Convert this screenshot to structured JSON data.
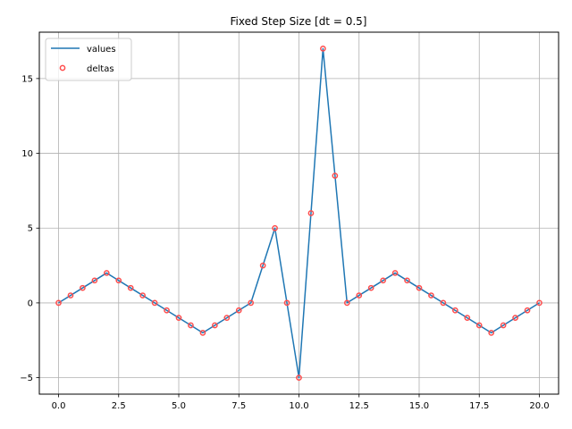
{
  "chart_data": {
    "type": "line",
    "title": "Fixed Step Size [dt = 0.5]",
    "xlabel": "",
    "ylabel": "",
    "xlim": [
      -0.8,
      20.8
    ],
    "ylim": [
      -6.1,
      18.1
    ],
    "grid": true,
    "legend_position": "top-left",
    "x_ticks": [
      0.0,
      2.5,
      5.0,
      7.5,
      10.0,
      12.5,
      15.0,
      17.5,
      20.0
    ],
    "x_tick_labels": [
      "0.0",
      "2.5",
      "5.0",
      "7.5",
      "10.0",
      "12.5",
      "15.0",
      "17.5",
      "20.0"
    ],
    "y_ticks": [
      -5,
      0,
      5,
      10,
      15
    ],
    "y_tick_labels": [
      "−5",
      "0",
      "5",
      "10",
      "15"
    ],
    "x": [
      0.0,
      0.5,
      1.0,
      1.5,
      2.0,
      2.5,
      3.0,
      3.5,
      4.0,
      4.5,
      5.0,
      5.5,
      6.0,
      6.5,
      7.0,
      7.5,
      8.0,
      8.5,
      9.0,
      9.5,
      10.0,
      10.5,
      11.0,
      11.5,
      12.0,
      12.5,
      13.0,
      13.5,
      14.0,
      14.5,
      15.0,
      15.5,
      16.0,
      16.5,
      17.0,
      17.5,
      18.0,
      18.5,
      19.0,
      19.5,
      20.0
    ],
    "series": [
      {
        "name": "values",
        "style": "line",
        "color": "#1f77b4",
        "x": [
          0.0,
          1.0,
          2.0,
          3.0,
          4.0,
          5.0,
          6.0,
          7.0,
          8.0,
          9.0,
          10.0,
          11.0,
          12.0,
          13.0,
          14.0,
          15.0,
          16.0,
          17.0,
          18.0,
          19.0,
          20.0
        ],
        "values": [
          0,
          1,
          2,
          1,
          0,
          -1,
          -2,
          -1,
          0,
          5,
          -5,
          17,
          0,
          1,
          2,
          1,
          0,
          -1,
          -2,
          -1,
          0
        ]
      },
      {
        "name": "deltas",
        "style": "scatter",
        "color": "#ff4d4d",
        "x": [
          0.0,
          0.5,
          1.0,
          1.5,
          2.0,
          2.5,
          3.0,
          3.5,
          4.0,
          4.5,
          5.0,
          5.5,
          6.0,
          6.5,
          7.0,
          7.5,
          8.0,
          8.5,
          9.0,
          9.5,
          10.0,
          10.5,
          11.0,
          11.5,
          12.0,
          12.5,
          13.0,
          13.5,
          14.0,
          14.5,
          15.0,
          15.5,
          16.0,
          16.5,
          17.0,
          17.5,
          18.0,
          18.5,
          19.0,
          19.5,
          20.0
        ],
        "values": [
          0,
          0.5,
          1,
          1.5,
          2,
          1.5,
          1,
          0.5,
          0,
          -0.5,
          -1,
          -1.5,
          -2,
          -1.5,
          -1,
          -0.5,
          0,
          2.5,
          5,
          0,
          -5,
          6,
          17,
          8.5,
          0,
          0.5,
          1,
          1.5,
          2,
          1.5,
          1,
          0.5,
          0,
          -0.5,
          -1,
          -1.5,
          -2,
          -1.5,
          -1,
          -0.5,
          0
        ]
      }
    ]
  }
}
